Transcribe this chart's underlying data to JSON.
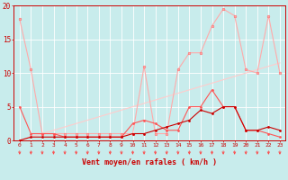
{
  "xlabel": "Vent moyen/en rafales ( km/h )",
  "x": [
    0,
    1,
    2,
    3,
    4,
    5,
    6,
    7,
    8,
    9,
    10,
    11,
    12,
    13,
    14,
    15,
    16,
    17,
    18,
    19,
    20,
    21,
    22,
    23
  ],
  "line_diag": [
    0,
    0.5,
    1,
    1.5,
    2,
    2.5,
    3,
    3.5,
    4,
    4.5,
    5,
    5.5,
    6,
    6.5,
    7,
    7.5,
    8,
    8.5,
    9,
    9.5,
    10,
    10.5,
    11,
    11.5
  ],
  "line_pink": [
    18,
    10.5,
    1,
    1,
    1,
    1,
    1,
    1,
    1,
    1,
    1,
    11,
    1,
    1,
    10.5,
    13,
    13,
    17,
    19.5,
    18.5,
    10.5,
    10,
    18.5,
    10
  ],
  "line_red": [
    5,
    1,
    1,
    1,
    0.5,
    0.5,
    0.5,
    0.5,
    0.5,
    0.5,
    2.5,
    3,
    2.5,
    1.5,
    1.5,
    5,
    5,
    7.5,
    5,
    5,
    1.5,
    1.5,
    1,
    0.5
  ],
  "line_dark": [
    0,
    0.5,
    0.5,
    0.5,
    0.5,
    0.5,
    0.5,
    0.5,
    0.5,
    0.5,
    1,
    1,
    1.5,
    2,
    2.5,
    3,
    4.5,
    4,
    5,
    5,
    1.5,
    1.5,
    2,
    1.5
  ],
  "color_diag": "#ffcccc",
  "color_pink": "#ffaaaa",
  "color_red": "#ff5555",
  "color_dark": "#cc0000",
  "bg_color": "#c8ecec",
  "grid_color": "#ffffff",
  "spine_color": "#cc0000",
  "tick_color": "#cc0000",
  "label_color": "#cc0000",
  "arrow_color": "#ff4444",
  "ylim": [
    0,
    20
  ],
  "xlim": [
    -0.5,
    23.5
  ],
  "yticks": [
    0,
    5,
    10,
    15,
    20
  ]
}
